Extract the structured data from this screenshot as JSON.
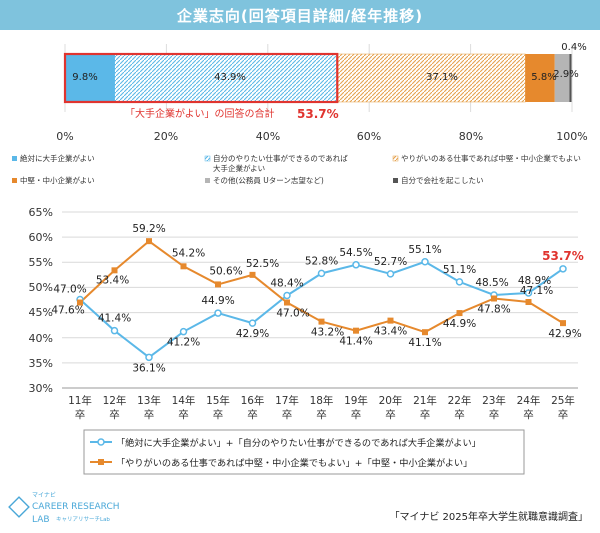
{
  "header": {
    "title": "企業志向(回答項目詳細/経年推移)"
  },
  "colors": {
    "header": "#7fc3dd",
    "blue": "#5bb8e8",
    "orange": "#e6892d",
    "highlight_red": "#e0342f",
    "gray": "#b5b5b5"
  },
  "chart_data": [
    {
      "type": "bar",
      "orientation": "horizontal-stacked",
      "segments": [
        {
          "name": "絶対に大手企業がよい",
          "value": 9.8,
          "label": "9.8%"
        },
        {
          "name": "自分のやりたい仕事ができるのであれば大手企業がよい",
          "value": 43.9,
          "label": "43.9%"
        },
        {
          "name": "やりがいのある仕事であれば中堅・中小企業でもよい",
          "value": 37.1,
          "label": "37.1%"
        },
        {
          "name": "中堅・中小企業がよい",
          "value": 5.8,
          "label": "5.8%"
        },
        {
          "name": "その他(公務員 Uターン志望など)",
          "value": 2.9,
          "label": "2.9%"
        },
        {
          "name": "自分で会社を起こしたい",
          "value": 0.4,
          "label": "0.4%"
        }
      ],
      "xlim": [
        0,
        100
      ],
      "xticks": [
        "0%",
        "20%",
        "40%",
        "60%",
        "80%",
        "100%"
      ],
      "annotation": {
        "text": "「大手企業がよい」の回答の合計",
        "value": "53.7%"
      },
      "legend": [
        "絶対に大手企業がよい",
        "自分のやりたい仕事ができるのであれば",
        "大手企業がよい",
        "やりがいのある仕事であれば中堅・中小企業でもよい",
        "中堅・中小企業がよい",
        "その他(公務員 Uターン志望など)",
        "自分で会社を起こしたい"
      ]
    },
    {
      "type": "line",
      "categories": [
        "11年卒",
        "12年卒",
        "13年卒",
        "14年卒",
        "15年卒",
        "16年卒",
        "17年卒",
        "18年卒",
        "19年卒",
        "20年卒",
        "21年卒",
        "22年卒",
        "23年卒",
        "24年卒",
        "25年卒"
      ],
      "ylim": [
        30,
        65
      ],
      "yticks": [
        "30%",
        "35%",
        "40%",
        "45%",
        "50%",
        "55%",
        "60%",
        "65%"
      ],
      "series": [
        {
          "name": "「絶対に大手企業がよい」+「自分のやりたい仕事ができるのであれば大手企業がよい」",
          "values": [
            47.6,
            41.4,
            36.1,
            41.2,
            44.9,
            42.9,
            48.4,
            52.8,
            54.5,
            52.7,
            55.1,
            51.1,
            48.5,
            48.9,
            53.7
          ]
        },
        {
          "name": "「やりがいのある仕事であれば中堅・中小企業でもよい」+「中堅・中小企業がよい」",
          "values": [
            47.0,
            53.4,
            59.2,
            54.2,
            50.6,
            52.5,
            47.0,
            43.2,
            41.4,
            43.4,
            41.1,
            44.9,
            47.8,
            47.1,
            42.9
          ]
        }
      ]
    }
  ],
  "footer": {
    "logo_small": "マイナビ",
    "logo_main": "CAREER RESEARCH",
    "logo_lab": "LAB",
    "logo_sub": "キャリアリサーチLab",
    "source": "「マイナビ 2025年卒大学生就職意識調査」"
  }
}
